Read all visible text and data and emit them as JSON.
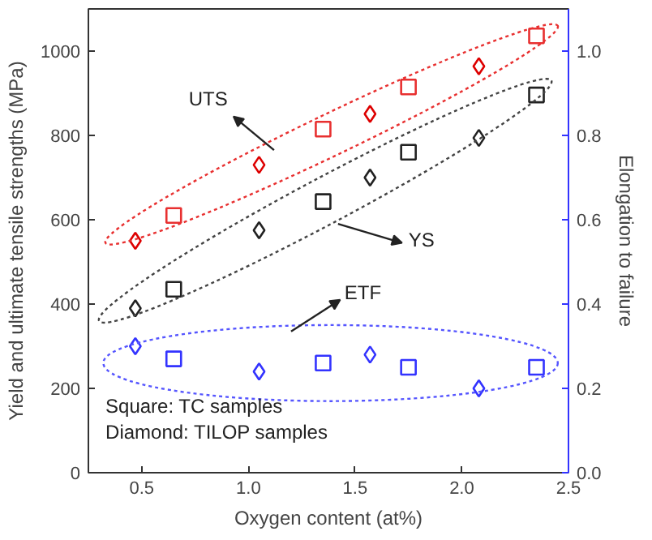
{
  "chart_data": {
    "type": "scatter",
    "xlabel": "Oxygen content (at%)",
    "ylabel": "Yield and ultimate tensile strengths (MPa)",
    "y2label": "Elongation to failure",
    "xlim": [
      0.25,
      2.5
    ],
    "xticks": [
      0.5,
      {
        "value": 1.0,
        "label": "1.0"
      },
      1.5,
      {
        "value": 2.0,
        "label": "2.0"
      },
      2.5
    ],
    "ylim": [
      0,
      1100
    ],
    "yticks": [
      0,
      200,
      400,
      600,
      800,
      1000
    ],
    "y2lim": [
      0,
      1.1
    ],
    "y2ticks": [
      {
        "value": 0,
        "label": "0.0"
      },
      0.2,
      0.4,
      0.6,
      0.8,
      {
        "value": 1,
        "label": "1.0"
      }
    ],
    "grid": false,
    "series": [
      {
        "color": "#e83030",
        "marker": "square",
        "x": [
          0.65,
          1.35,
          1.75,
          2.35
        ],
        "values": [
          610,
          815,
          915,
          1036
        ]
      },
      {
        "color": "#dd0000",
        "marker": "diamond",
        "x": [
          0.47,
          1.05,
          1.57,
          2.08
        ],
        "values": [
          550,
          730,
          851,
          964
        ]
      },
      {
        "color": "#222222",
        "marker": "square",
        "x": [
          0.65,
          1.35,
          1.75,
          2.35
        ],
        "values": [
          435,
          643,
          760,
          896
        ]
      },
      {
        "color": "#222222",
        "marker": "diamond",
        "x": [
          0.47,
          1.05,
          1.57,
          2.08
        ],
        "values": [
          390,
          575,
          700,
          794
        ]
      },
      {
        "color": "#3333ff",
        "marker": "square",
        "axis": "y2",
        "x": [
          0.65,
          1.35,
          1.75,
          2.35
        ],
        "values": [
          0.27,
          0.26,
          0.25,
          0.25
        ]
      },
      {
        "color": "#3333ff",
        "marker": "diamond",
        "axis": "y2",
        "x": [
          0.47,
          1.05,
          1.57,
          2.08
        ],
        "values": [
          0.3,
          0.24,
          0.28,
          0.2
        ]
      }
    ],
    "annotations": [
      "UTS",
      "YS",
      "ETF",
      "Square: TC samples",
      "Diamond: TILOP samples"
    ]
  }
}
